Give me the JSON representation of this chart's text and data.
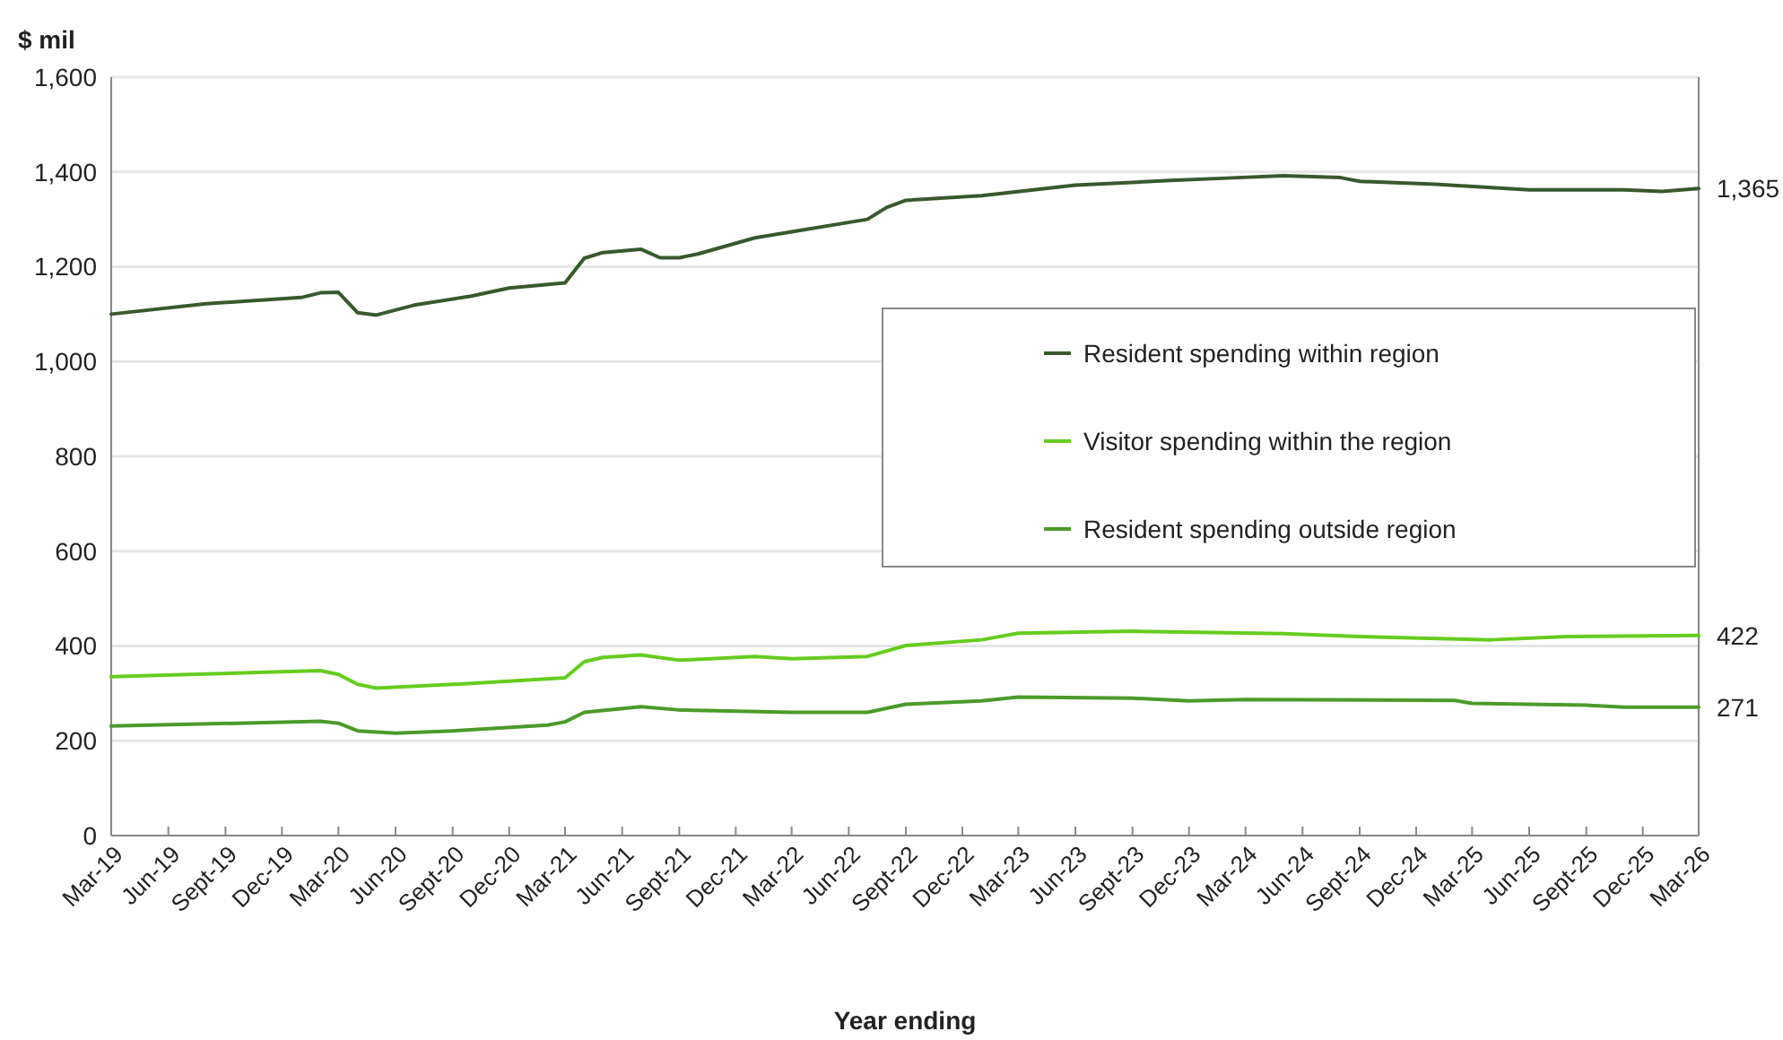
{
  "chart_data": {
    "type": "line",
    "xlabel": "Year ending",
    "ylabel": "$ mil",
    "grid": "y",
    "legend": "right",
    "marker": "none",
    "line_style": "solid",
    "xlim": [
      "2019-03",
      "2026-03"
    ],
    "ylim": [
      0,
      1600
    ],
    "yticks": [
      0,
      200,
      400,
      600,
      800,
      {
        "value": 1000,
        "label": "1,000"
      },
      {
        "value": 1200,
        "label": "1,200"
      },
      {
        "value": 1400,
        "label": "1,400"
      },
      {
        "value": 1600,
        "label": "1,600"
      }
    ],
    "xticks": [
      {
        "value": "2019-03",
        "label": "Mar-19"
      },
      {
        "value": "2019-06",
        "label": "Jun-19"
      },
      {
        "value": "2019-09",
        "label": "Sept-19"
      },
      {
        "value": "2019-12",
        "label": "Dec-19"
      },
      {
        "value": "2020-03",
        "label": "Mar-20"
      },
      {
        "value": "2020-06",
        "label": "Jun-20"
      },
      {
        "value": "2020-09",
        "label": "Sept-20"
      },
      {
        "value": "2020-12",
        "label": "Dec-20"
      },
      {
        "value": "2021-03",
        "label": "Mar-21"
      },
      {
        "value": "2021-06",
        "label": "Jun-21"
      },
      {
        "value": "2021-09",
        "label": "Sept-21"
      },
      {
        "value": "2021-12",
        "label": "Dec-21"
      },
      {
        "value": "2022-03",
        "label": "Mar-22"
      },
      {
        "value": "2022-06",
        "label": "Jun-22"
      },
      {
        "value": "2022-09",
        "label": "Sept-22"
      },
      {
        "value": "2022-12",
        "label": "Dec-22"
      },
      {
        "value": "2023-03",
        "label": "Mar-23"
      },
      {
        "value": "2023-06",
        "label": "Jun-23"
      },
      {
        "value": "2023-09",
        "label": "Sept-23"
      },
      {
        "value": "2023-12",
        "label": "Dec-23"
      },
      {
        "value": "2024-03",
        "label": "Mar-24"
      },
      {
        "value": "2024-06",
        "label": "Jun-24"
      },
      {
        "value": "2024-09",
        "label": "Sept-24"
      },
      {
        "value": "2024-12",
        "label": "Dec-24"
      },
      {
        "value": "2025-03",
        "label": "Mar-25"
      },
      {
        "value": "2025-06",
        "label": "Jun-25"
      },
      {
        "value": "2025-09",
        "label": "Sept-25"
      },
      {
        "value": "2025-12",
        "label": "Dec-25"
      },
      {
        "value": "2026-03",
        "label": "Mar-26"
      }
    ],
    "series": [
      {
        "name": "Resident spending within region",
        "color": "#375a2c",
        "x": [
          "2019-03",
          "2019-08",
          "2020-01",
          "2020-02",
          "2020-03",
          "2020-04",
          "2020-05",
          "2020-07",
          "2020-10",
          "2020-12",
          "2021-03",
          "2021-04",
          "2021-05",
          "2021-07",
          "2021-08",
          "2021-09",
          "2021-10",
          "2022-01",
          "2022-07",
          "2022-08",
          "2022-09",
          "2023-01",
          "2023-06",
          "2023-11",
          "2024-02",
          "2024-05",
          "2024-08",
          "2024-09",
          "2025-01",
          "2025-06",
          "2025-11",
          "2026-01",
          "2026-03"
        ],
        "values": [
          1100,
          1122,
          1135,
          1145,
          1146,
          1103,
          1098,
          1119,
          1138,
          1155,
          1166,
          1218,
          1230,
          1237,
          1219,
          1219,
          1227,
          1261,
          1300,
          1325,
          1340,
          1350,
          1372,
          1382,
          1387,
          1392,
          1388,
          1380,
          1374,
          1362,
          1362,
          1359,
          1365
        ]
      },
      {
        "name": "Visitor spending within the region",
        "color": "#66cc1f",
        "x": [
          "2019-03",
          "2020-02",
          "2020-03",
          "2020-04",
          "2020-05",
          "2020-10",
          "2021-03",
          "2021-04",
          "2021-05",
          "2021-07",
          "2021-09",
          "2022-01",
          "2022-03",
          "2022-07",
          "2022-09",
          "2023-01",
          "2023-03",
          "2023-09",
          "2024-05",
          "2024-09",
          "2025-04",
          "2025-08",
          "2026-03"
        ],
        "values": [
          335,
          348,
          340,
          319,
          311,
          321,
          333,
          367,
          376,
          381,
          370,
          378,
          373,
          378,
          401,
          413,
          427,
          431,
          426,
          420,
          413,
          420,
          422
        ]
      },
      {
        "name": "Resident spending outside region",
        "color": "#4c9a2a",
        "x": [
          "2019-03",
          "2020-02",
          "2020-03",
          "2020-04",
          "2020-06",
          "2020-09",
          "2021-02",
          "2021-03",
          "2021-04",
          "2021-07",
          "2021-09",
          "2022-03",
          "2022-07",
          "2022-09",
          "2023-01",
          "2023-03",
          "2023-09",
          "2023-12",
          "2024-03",
          "2025-02",
          "2025-03",
          "2025-09",
          "2025-11",
          "2026-03"
        ],
        "values": [
          231,
          241,
          237,
          221,
          216,
          221,
          233,
          240,
          260,
          272,
          265,
          260,
          260,
          277,
          284,
          292,
          290,
          284,
          287,
          285,
          279,
          275,
          271,
          271
        ]
      }
    ],
    "annotations": [
      {
        "text": "1,365",
        "x": "2026-03",
        "y": 1365
      },
      {
        "text": "422",
        "x": "2026-03",
        "y": 422
      },
      {
        "text": "271",
        "x": "2026-03",
        "y": 271
      }
    ]
  }
}
